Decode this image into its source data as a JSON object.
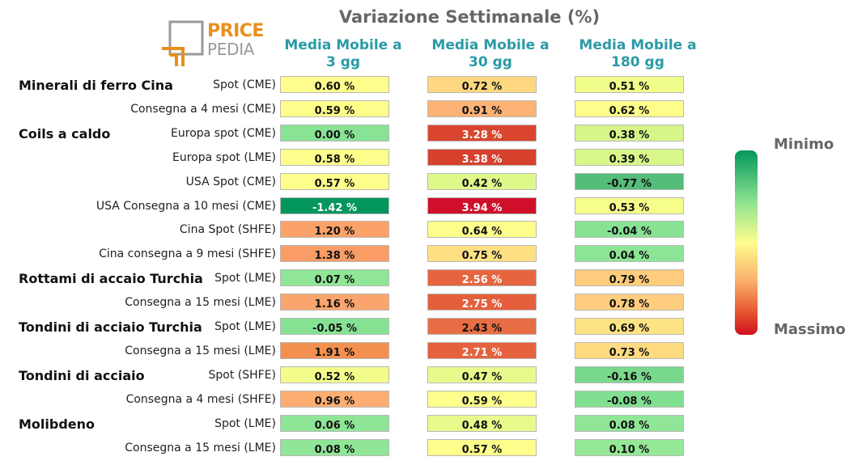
{
  "title": "Variazione Settimanale (%)",
  "logo": {
    "line1": "PRICE",
    "line2": "PEDIA"
  },
  "legend": {
    "min_label": "Minimo",
    "max_label": "Massimo"
  },
  "chart_data": {
    "type": "heatmap",
    "title": "Variazione Settimanale (%)",
    "columns": [
      {
        "line1": "Media Mobile a",
        "line2": "3 gg"
      },
      {
        "line1": "Media Mobile a",
        "line2": "30 gg"
      },
      {
        "line1": "Media Mobile a",
        "line2": "180 gg"
      }
    ],
    "rows": [
      {
        "group": "Minerali di ferro Cina",
        "label": "Spot (CME)",
        "values": [
          0.6,
          0.72,
          0.51
        ],
        "labels": [
          "0.60 %",
          "0.72 %",
          "0.51 %"
        ],
        "colors": [
          "#fefe8c",
          "#fed880",
          "#f1fd8a"
        ]
      },
      {
        "group": "",
        "label": "Consegna a 4 mesi (CME)",
        "values": [
          0.59,
          0.91,
          0.62
        ],
        "labels": [
          "0.59 %",
          "0.91 %",
          "0.62 %"
        ],
        "colors": [
          "#fefe8c",
          "#fdb375",
          "#fefc8b"
        ]
      },
      {
        "group": "Coils a caldo",
        "label": "Europa spot (CME)",
        "values": [
          0.0,
          3.28,
          0.38
        ],
        "labels": [
          "0.00 %",
          "3.28 %",
          "0.38 %"
        ],
        "colors": [
          "#88e394",
          "#d9452e",
          "#d6f68a"
        ]
      },
      {
        "group": "",
        "label": "Europa spot (LME)",
        "values": [
          0.58,
          3.38,
          0.39
        ],
        "labels": [
          "0.58 %",
          "3.38 %",
          "0.39 %"
        ],
        "colors": [
          "#fefe8c",
          "#d6412d",
          "#d8f78a"
        ]
      },
      {
        "group": "",
        "label": "USA Spot (CME)",
        "values": [
          0.57,
          0.42,
          -0.77
        ],
        "labels": [
          "0.57 %",
          "0.42 %",
          "-0.77 %"
        ],
        "colors": [
          "#fefe8c",
          "#def98a",
          "#54bd79"
        ]
      },
      {
        "group": "",
        "label": "USA Consegna a 10 mesi (CME)",
        "values": [
          -1.42,
          3.94,
          0.53
        ],
        "labels": [
          "-1.42 %",
          "3.94 %",
          "0.53 %"
        ],
        "colors": [
          "#03975d",
          "#d0102a",
          "#f5fd8b"
        ]
      },
      {
        "group": "",
        "label": "Cina Spot (SHFE)",
        "values": [
          1.2,
          0.64,
          -0.04
        ],
        "labels": [
          "1.20 %",
          "0.64 %",
          "-0.04 %"
        ],
        "colors": [
          "#fba26a",
          "#fefe8c",
          "#87e293"
        ]
      },
      {
        "group": "",
        "label": "Cina consegna a 9 mesi (SHFE)",
        "values": [
          1.38,
          0.75,
          0.04
        ],
        "labels": [
          "1.38 %",
          "0.75 %",
          "0.04 %"
        ],
        "colors": [
          "#f99c66",
          "#fee083",
          "#8ce595"
        ]
      },
      {
        "group": "Rottami di accaio Turchia",
        "label": "Spot (LME)",
        "values": [
          0.07,
          2.56,
          0.79
        ],
        "labels": [
          "0.07 %",
          "2.56 %",
          "0.79 %"
        ],
        "colors": [
          "#8fe696",
          "#e6653f",
          "#fecc7c"
        ]
      },
      {
        "group": "",
        "label": "Consegna a 15 mesi (LME)",
        "values": [
          1.16,
          2.75,
          0.78
        ],
        "labels": [
          "1.16 %",
          "2.75 %",
          "0.78 %"
        ],
        "colors": [
          "#fba56e",
          "#e55f3d",
          "#fecd7d"
        ]
      },
      {
        "group": "Tondini di acciaio Turchia",
        "label": "Spot (LME)",
        "values": [
          -0.05,
          2.43,
          0.69
        ],
        "labels": [
          "-0.05 %",
          "2.43 %",
          "0.69 %"
        ],
        "colors": [
          "#86e293",
          "#e96d44",
          "#fee384"
        ]
      },
      {
        "group": "",
        "label": "Consegna a 15 mesi (LME)",
        "values": [
          1.91,
          2.71,
          0.73
        ],
        "labels": [
          "1.91 %",
          "2.71 %",
          "0.73 %"
        ],
        "colors": [
          "#f3904f",
          "#e6623e",
          "#fedb80"
        ]
      },
      {
        "group": "Tondini di acciaio",
        "label": "Spot (SHFE)",
        "values": [
          0.52,
          0.47,
          -0.16
        ],
        "labels": [
          "0.52 %",
          "0.47 %",
          "-0.16 %"
        ],
        "colors": [
          "#f3fd8b",
          "#e6fb8b",
          "#79d98d"
        ]
      },
      {
        "group": "",
        "label": "Consegna a 4 mesi (SHFE)",
        "values": [
          0.96,
          0.59,
          -0.08
        ],
        "labels": [
          "0.96 %",
          "0.59 %",
          "-0.08 %"
        ],
        "colors": [
          "#fcae72",
          "#fefe8c",
          "#81df91"
        ]
      },
      {
        "group": "Molibdeno",
        "label": "Spot (LME)",
        "values": [
          0.06,
          0.48,
          0.08
        ],
        "labels": [
          "0.06 %",
          "0.48 %",
          "0.08 %"
        ],
        "colors": [
          "#8fe596",
          "#e6fb8b",
          "#90e696"
        ]
      },
      {
        "group": "",
        "label": "Consegna a 15 mesi (LME)",
        "values": [
          0.08,
          0.57,
          0.1
        ],
        "labels": [
          "0.08 %",
          "0.57 %",
          "0.10 %"
        ],
        "colors": [
          "#90e696",
          "#fefe8c",
          "#94e896"
        ]
      }
    ],
    "colorscale": {
      "low": "#03985c",
      "mid": "#fdfd8f",
      "high": "#d0101f"
    }
  }
}
